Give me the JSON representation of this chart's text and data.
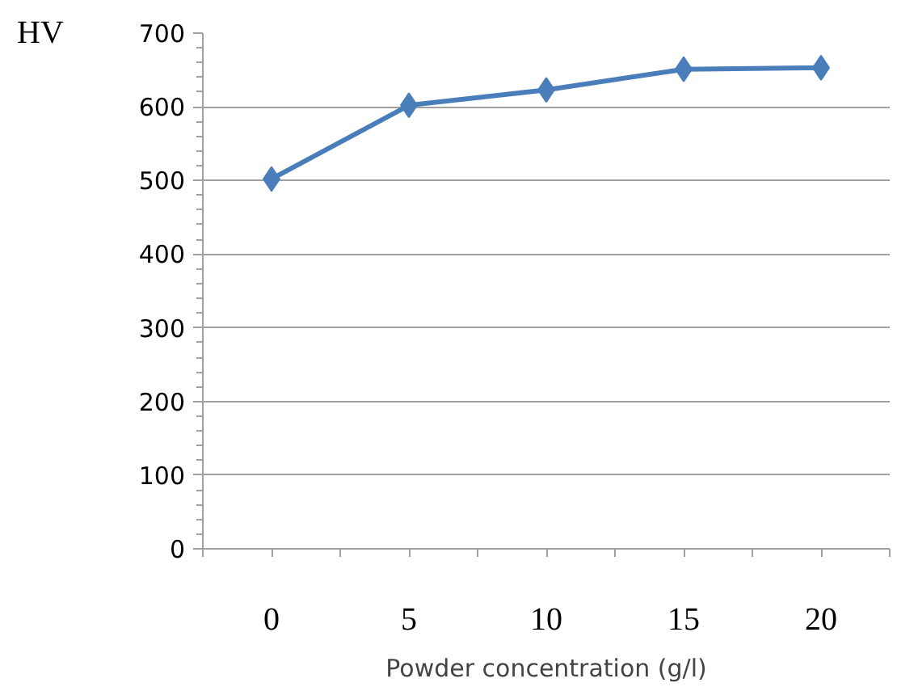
{
  "chart_data": {
    "type": "line",
    "ylabel": "HV",
    "xlabel": "Powder concentration (g/l)",
    "categories": [
      "0",
      "5",
      "10",
      "15",
      "20"
    ],
    "series": [
      {
        "color": "#4a7ebb",
        "values": [
          502,
          602,
          623,
          651,
          653
        ]
      }
    ],
    "ylim": [
      0,
      700
    ],
    "yticks": [
      0,
      100,
      200,
      300,
      400,
      500,
      600,
      700
    ],
    "grid": "y",
    "marker": "diamond",
    "line_style": "solid"
  }
}
